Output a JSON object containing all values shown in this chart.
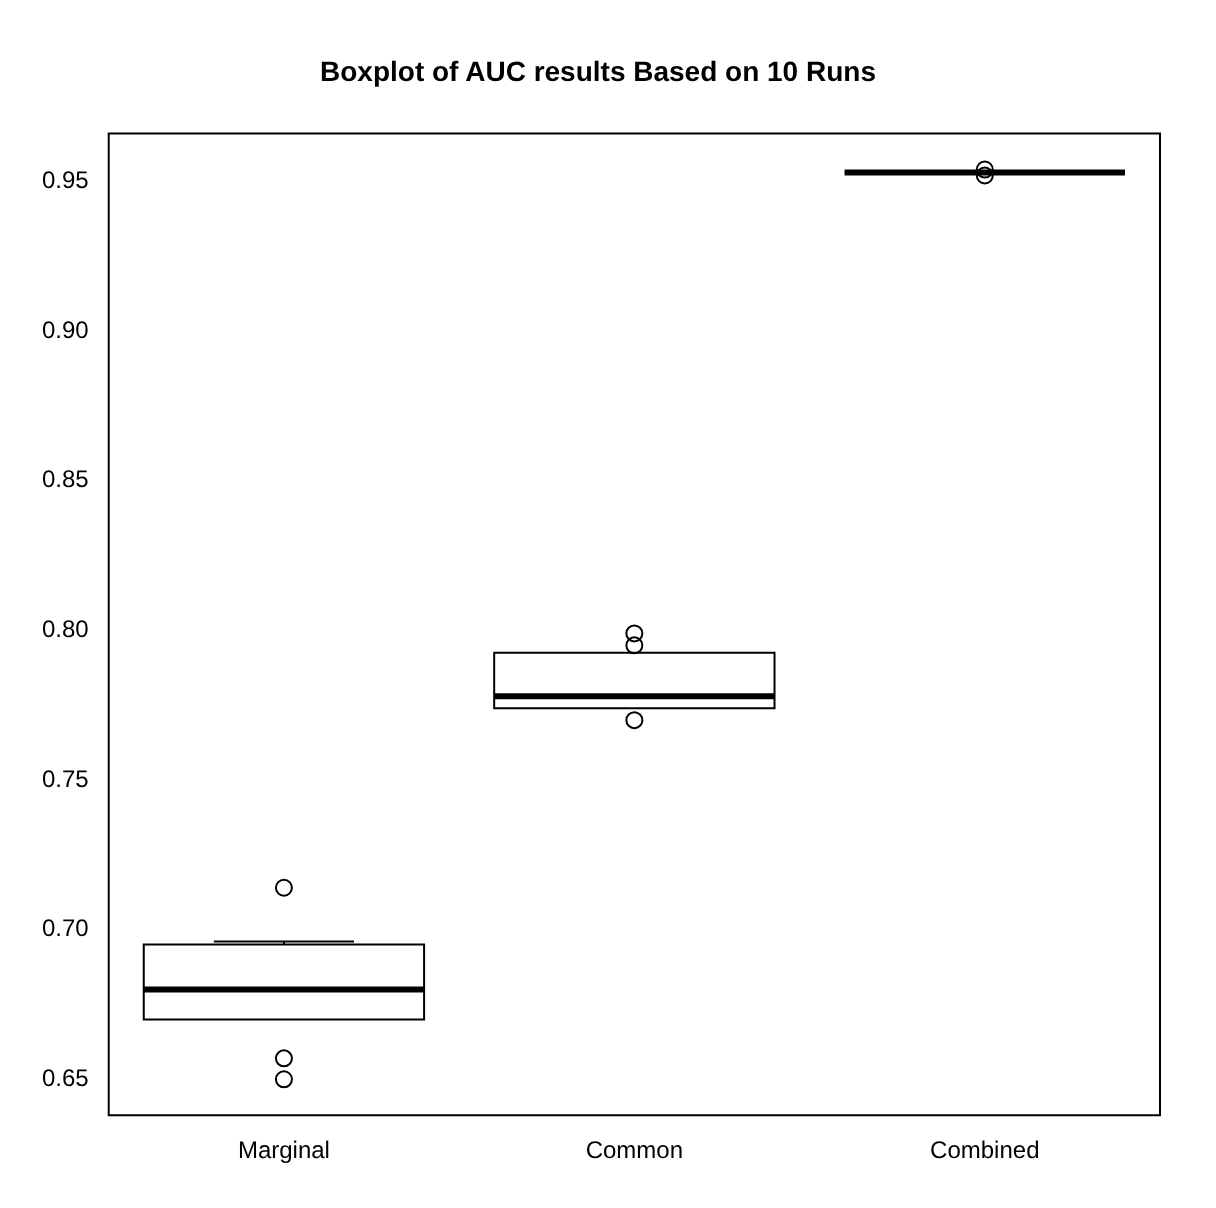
{
  "chart_data": {
    "type": "box",
    "title": "Boxplot of AUC results Based on 10 Runs",
    "categories": [
      "Marginal",
      "Common",
      "Combined"
    ],
    "boxes": [
      {
        "low": 0.67,
        "q1": 0.67,
        "median": 0.68,
        "q3": 0.695,
        "high": 0.696,
        "outliers": [
          0.714,
          0.657,
          0.65
        ]
      },
      {
        "low": 0.774,
        "q1": 0.774,
        "median": 0.778,
        "q3": 0.7925,
        "high": 0.7925,
        "outliers": [
          0.799,
          0.795,
          0.77
        ]
      },
      {
        "low": 0.953,
        "q1": 0.953,
        "median": 0.953,
        "q3": 0.953,
        "high": 0.953,
        "outliers": [
          0.954,
          0.952
        ]
      }
    ],
    "ylim": [
      0.638,
      0.966
    ],
    "yticks": [
      0.65,
      {
        "value": 0.7,
        "label": "0.70"
      },
      0.75,
      {
        "value": 0.8,
        "label": "0.80"
      },
      0.85,
      {
        "value": 0.9,
        "label": "0.90"
      },
      0.95
    ]
  }
}
